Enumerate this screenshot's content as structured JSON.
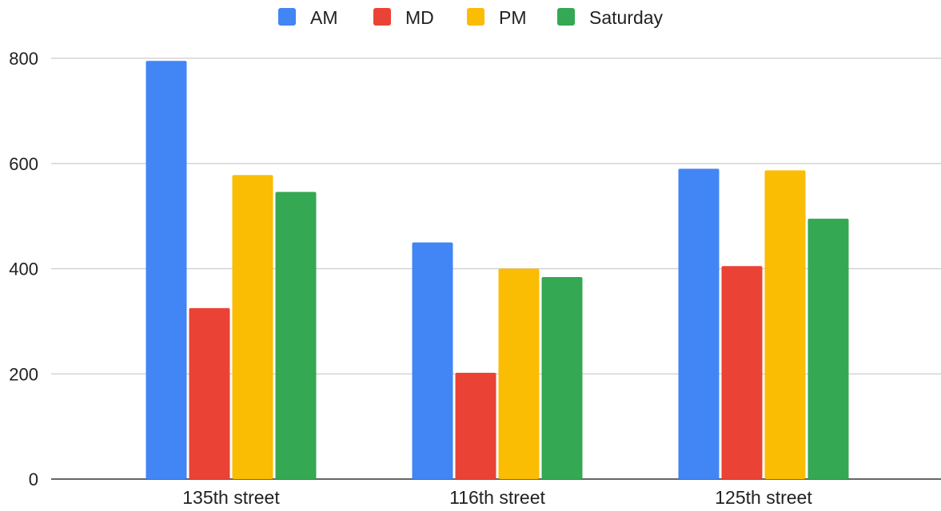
{
  "chart_data": {
    "type": "bar",
    "title": "",
    "xlabel": "",
    "ylabel": "",
    "categories": [
      "135th street",
      "116th street",
      "125th street"
    ],
    "series": [
      {
        "name": "AM",
        "color": "#4285F4",
        "values": [
          795,
          450,
          590
        ]
      },
      {
        "name": "MD",
        "color": "#EA4335",
        "values": [
          325,
          202,
          405
        ]
      },
      {
        "name": "PM",
        "color": "#FBBC04",
        "values": [
          578,
          400,
          587
        ]
      },
      {
        "name": "Saturday",
        "color": "#34A853",
        "values": [
          546,
          384,
          495
        ]
      }
    ],
    "ylim": [
      0,
      800
    ],
    "yticks": [
      0,
      200,
      400,
      600,
      800
    ],
    "grid": true,
    "legend_position": "top-center"
  }
}
